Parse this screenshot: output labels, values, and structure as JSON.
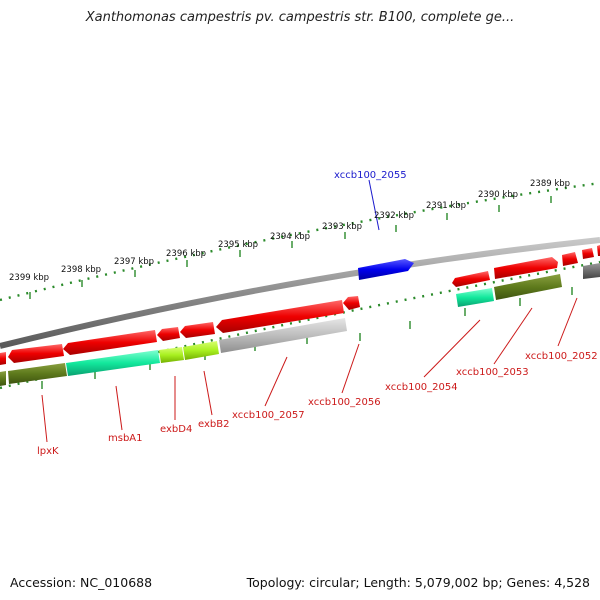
{
  "header": {
    "title": "Xanthomonas campestris pv. campestris str. B100, complete ge..."
  },
  "footer": {
    "accession": "Accession: NC_010688",
    "summary": "Topology: circular; Length: 5,079,002 bp; Genes: 4,528"
  },
  "map": {
    "backbone_color": "#8c8c8c",
    "scale_labels": [
      {
        "text": "2399 kbp"
      },
      {
        "text": "2398 kbp"
      },
      {
        "text": "2397 kbp"
      },
      {
        "text": "2396 kbp"
      },
      {
        "text": "2395 kbp"
      },
      {
        "text": "2394 kbp"
      },
      {
        "text": "2393 kbp"
      },
      {
        "text": "2392 kbp"
      },
      {
        "text": "2391 kbp"
      },
      {
        "text": "2390 kbp"
      },
      {
        "text": "2389 kbp"
      }
    ],
    "gene_labels": [
      {
        "text": "xccb100_2055",
        "color": "#1a1acc"
      },
      {
        "text": "lpxK",
        "color": "#cc1a1a"
      },
      {
        "text": "msbA1",
        "color": "#cc1a1a"
      },
      {
        "text": "exbD4",
        "color": "#cc1a1a"
      },
      {
        "text": "exbB2",
        "color": "#cc1a1a"
      },
      {
        "text": "xccb100_2057",
        "color": "#cc1a1a"
      },
      {
        "text": "xccb100_2056",
        "color": "#cc1a1a"
      },
      {
        "text": "xccb100_2054",
        "color": "#cc1a1a"
      },
      {
        "text": "xccb100_2053",
        "color": "#cc1a1a"
      },
      {
        "text": "xccb100_2052",
        "color": "#cc1a1a"
      }
    ]
  }
}
